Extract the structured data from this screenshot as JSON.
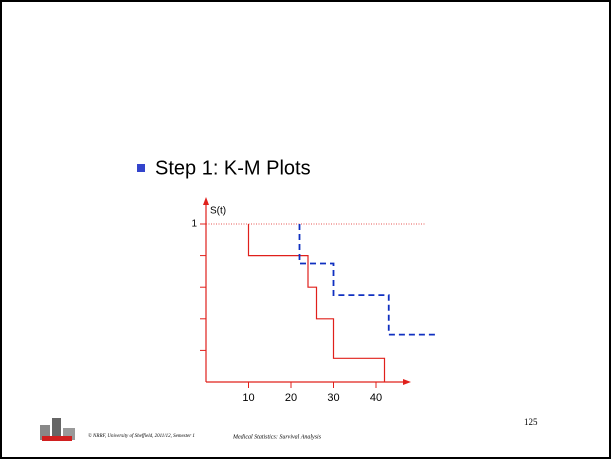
{
  "slide": {
    "bullet": "Step 1: K-M Plots",
    "footer_left": "© NRRF, University of Sheffield, 2011/12, Semester 1",
    "footer_center": "Medical Statistics: Survival Analysis",
    "page_number": "125"
  },
  "chart_data": {
    "type": "step",
    "ylabel": "S(t)",
    "xlim": [
      0,
      48
    ],
    "xticks": [
      10,
      20,
      30,
      40
    ],
    "ylim": [
      0,
      1
    ],
    "yticks": [
      1
    ],
    "yminor": [
      0.2,
      0.4,
      0.6,
      0.8
    ],
    "reference_line": 1,
    "series": [
      {
        "color": "#e0201b",
        "dash": false,
        "start": 1,
        "x": [
          10,
          24,
          26,
          30,
          42
        ],
        "values": [
          0.8,
          0.6,
          0.4,
          0.15,
          0
        ]
      },
      {
        "color": "#1030c0",
        "dash": true,
        "start": 1,
        "x": [
          22,
          30,
          43,
          54
        ],
        "values": [
          0.75,
          0.55,
          0.3,
          0.3
        ]
      }
    ]
  }
}
